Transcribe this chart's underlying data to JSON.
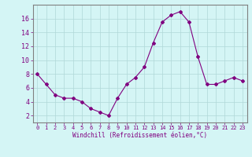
{
  "x": [
    0,
    1,
    2,
    3,
    4,
    5,
    6,
    7,
    8,
    9,
    10,
    11,
    12,
    13,
    14,
    15,
    16,
    17,
    18,
    19,
    20,
    21,
    22,
    23
  ],
  "y": [
    8,
    6.5,
    5,
    4.5,
    4.5,
    4,
    3,
    2.5,
    2,
    4.5,
    6.5,
    7.5,
    9,
    12.5,
    15.5,
    16.5,
    17,
    15.5,
    10.5,
    6.5,
    6.5,
    7,
    7.5,
    7
  ],
  "line_color": "#800080",
  "marker": "D",
  "marker_size": 2,
  "xlabel": "Windchill (Refroidissement éolien,°C)",
  "xlim": [
    -0.5,
    23.5
  ],
  "ylim": [
    1,
    18
  ],
  "yticks": [
    2,
    4,
    6,
    8,
    10,
    12,
    14,
    16
  ],
  "xticks": [
    0,
    1,
    2,
    3,
    4,
    5,
    6,
    7,
    8,
    9,
    10,
    11,
    12,
    13,
    14,
    15,
    16,
    17,
    18,
    19,
    20,
    21,
    22,
    23
  ],
  "background_color": "#d4f5f5",
  "grid_color": "#b0d8d8",
  "axis_color": "#808080",
  "label_color": "#800080",
  "tick_fontsize": 5,
  "xlabel_fontsize": 5.5
}
